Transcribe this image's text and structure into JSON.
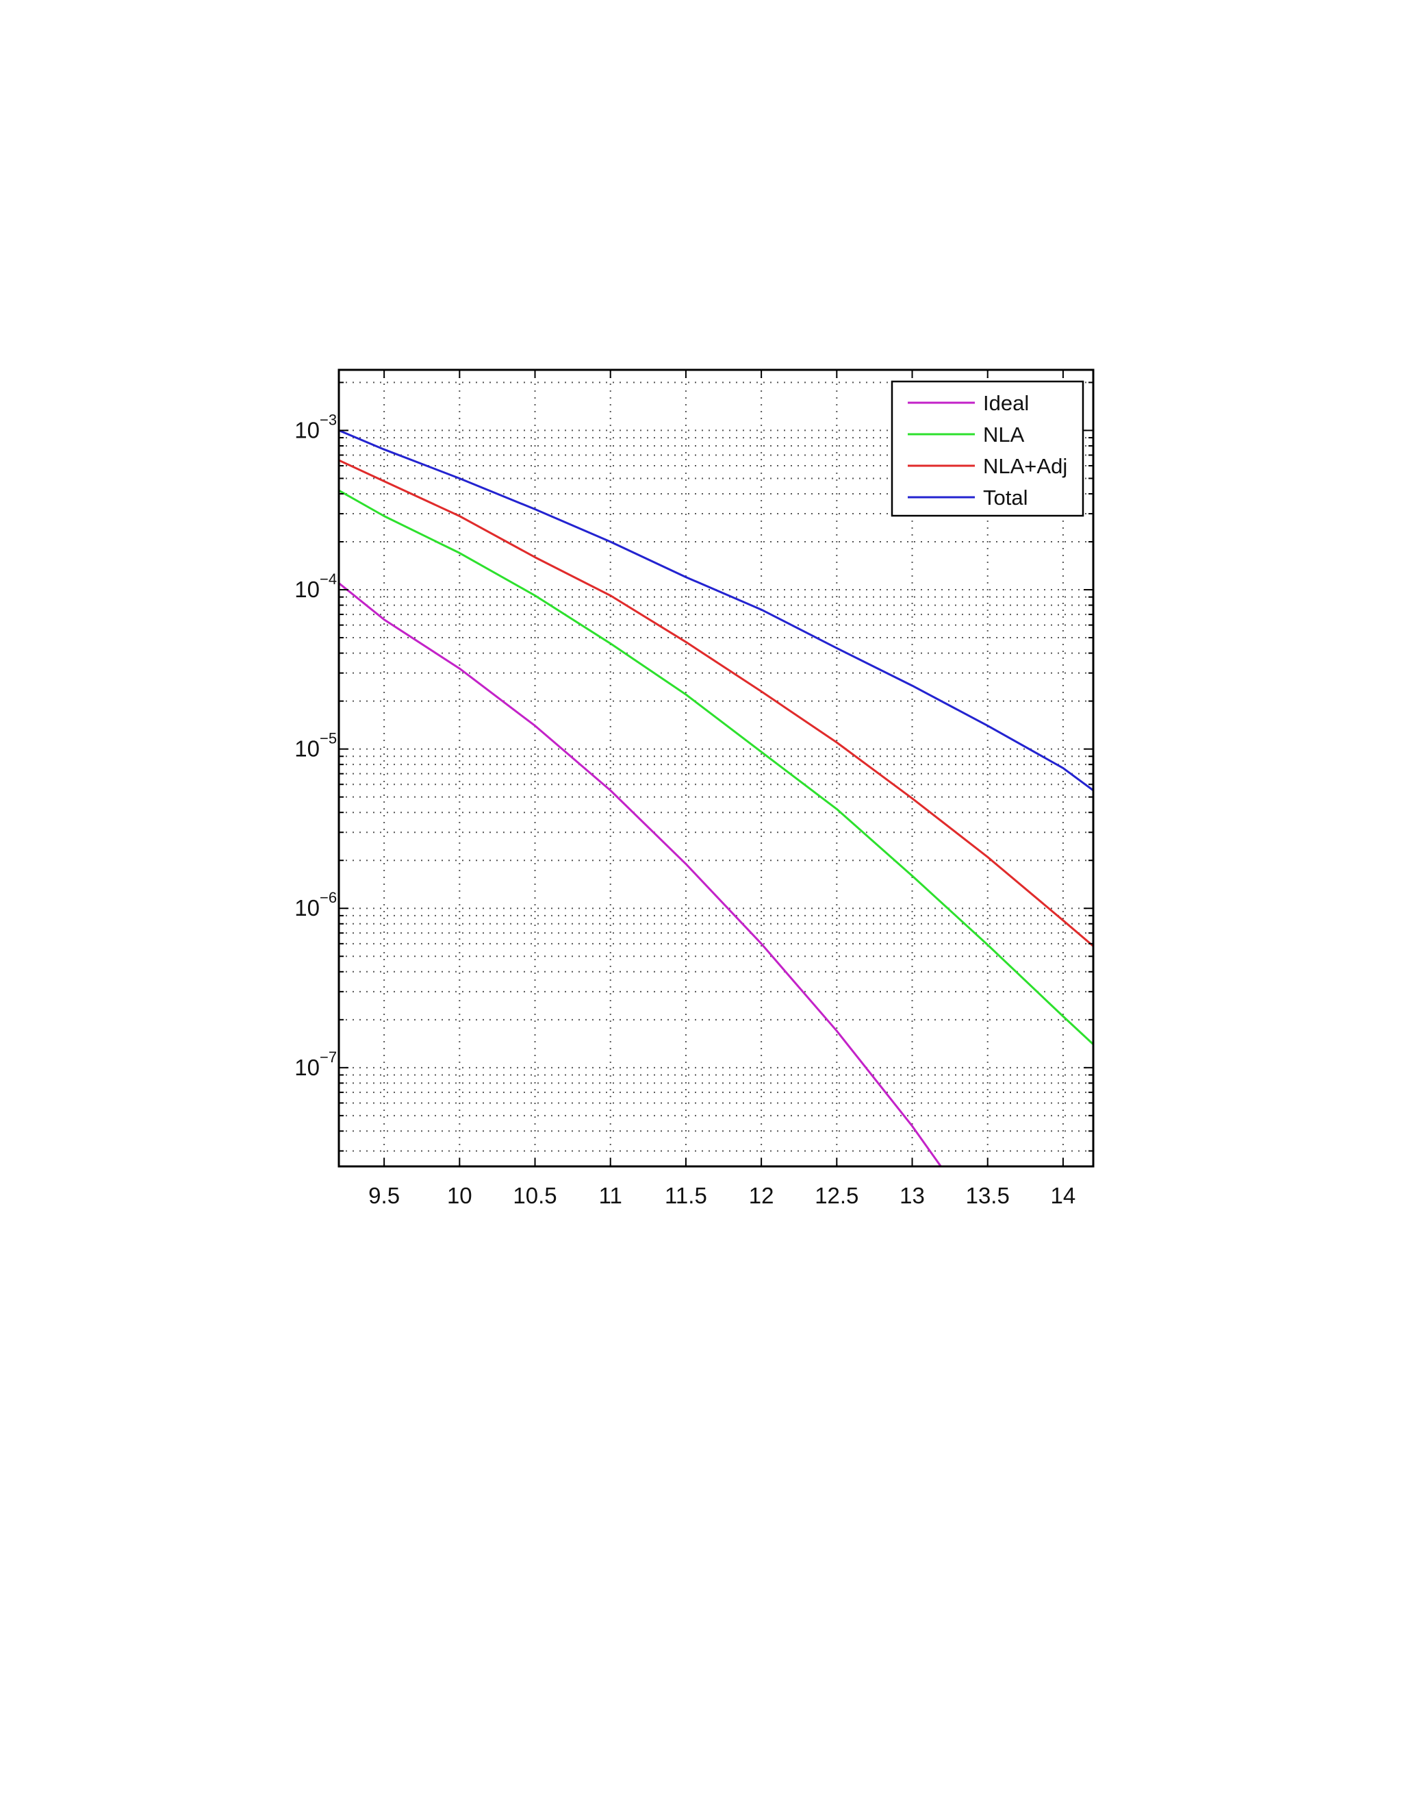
{
  "chart_data": {
    "type": "line",
    "title": "",
    "xlabel": "",
    "ylabel": "",
    "xlim": [
      9.2,
      14.2
    ],
    "ylim": [
      2.4e-08,
      0.0024
    ],
    "yscale": "log",
    "grid": true,
    "legend_position": "top-right",
    "x_ticks": [
      "9.5",
      "10",
      "10.5",
      "11",
      "11.5",
      "12",
      "12.5",
      "13",
      "13.5",
      "14"
    ],
    "y_ticks": [
      {
        "base": "10",
        "exp": "−3"
      },
      {
        "base": "10",
        "exp": "−4"
      },
      {
        "base": "10",
        "exp": "−5"
      },
      {
        "base": "10",
        "exp": "−6"
      },
      {
        "base": "10",
        "exp": "−7"
      }
    ],
    "series": [
      {
        "name": "Ideal",
        "color": "#c322c8",
        "x": [
          9.2,
          9.5,
          10,
          10.5,
          11,
          11.5,
          12,
          12.5,
          13,
          13.19
        ],
        "y": [
          0.00011,
          6.5e-05,
          3.2e-05,
          1.4e-05,
          5.5e-06,
          1.9e-06,
          6e-07,
          1.7e-07,
          4.3e-08,
          2.4e-08
        ]
      },
      {
        "name": "NLA",
        "color": "#2de02d",
        "x": [
          9.2,
          9.5,
          10,
          10.5,
          11,
          11.5,
          12,
          12.5,
          13,
          13.5,
          14,
          14.2
        ],
        "y": [
          0.00042,
          0.00029,
          0.00017,
          9.2e-05,
          4.6e-05,
          2.2e-05,
          9.6e-06,
          4.2e-06,
          1.6e-06,
          5.9e-07,
          2.1e-07,
          1.4e-07
        ]
      },
      {
        "name": "NLA+Adj",
        "color": "#e02b2b",
        "x": [
          9.2,
          9.5,
          10,
          10.5,
          11,
          11.5,
          12,
          12.5,
          13,
          13.5,
          14,
          14.2
        ],
        "y": [
          0.00065,
          0.00048,
          0.00029,
          0.00016,
          9.2e-05,
          4.7e-05,
          2.3e-05,
          1.1e-05,
          4.9e-06,
          2.1e-06,
          8.4e-07,
          5.8e-07
        ]
      },
      {
        "name": "Total",
        "color": "#2323d0",
        "x": [
          9.2,
          9.5,
          10,
          10.5,
          11,
          11.5,
          12,
          12.5,
          13,
          13.5,
          14,
          14.2
        ],
        "y": [
          0.001,
          0.00076,
          0.0005,
          0.00032,
          0.0002,
          0.00012,
          7.5e-05,
          4.3e-05,
          2.5e-05,
          1.4e-05,
          7.6e-06,
          5.5e-06
        ]
      }
    ]
  }
}
